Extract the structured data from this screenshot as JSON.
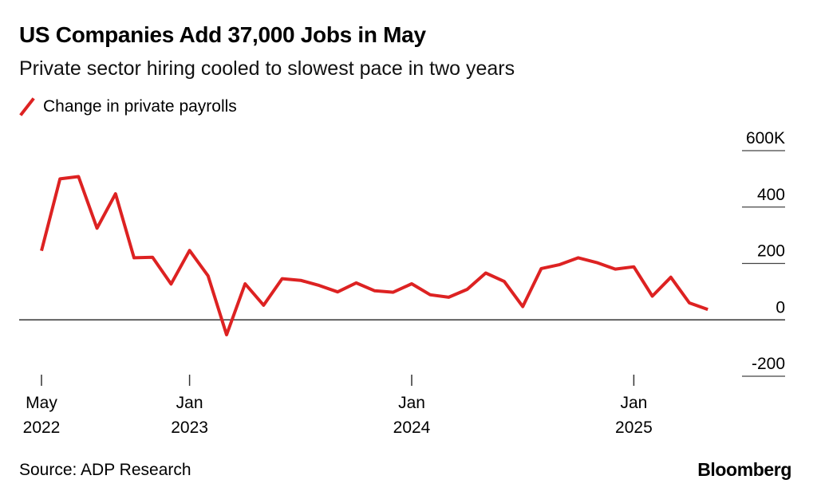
{
  "header": {
    "title": "US Companies Add 37,000 Jobs in May",
    "subtitle": "Private sector hiring cooled to slowest pace in two years"
  },
  "legend": {
    "label": "Change in private payrolls",
    "color": "#dd2222"
  },
  "footer": {
    "source": "Source: ADP Research",
    "brand": "Bloomberg"
  },
  "chart_data": {
    "type": "line",
    "title": "US Companies Add 37,000 Jobs in May",
    "subtitle": "Private sector hiring cooled to slowest pace in two years",
    "xlabel": "",
    "ylabel": "",
    "ylim": [
      -200,
      600
    ],
    "grid": true,
    "legend_position": "top-left",
    "y_ticks": [
      {
        "value": 600,
        "label": "600K"
      },
      {
        "value": 400,
        "label": "400"
      },
      {
        "value": 200,
        "label": "200"
      },
      {
        "value": 0,
        "label": "0"
      },
      {
        "value": -200,
        "label": "-200"
      }
    ],
    "x_ticks": [
      {
        "date": "2022-05",
        "line1": "May",
        "line2": "2022"
      },
      {
        "date": "2023-01",
        "line1": "Jan",
        "line2": "2023"
      },
      {
        "date": "2024-01",
        "line1": "Jan",
        "line2": "2024"
      },
      {
        "date": "2025-01",
        "line1": "Jan",
        "line2": "2025"
      }
    ],
    "series": [
      {
        "name": "Change in private payrolls",
        "color": "#dd2222",
        "x": [
          "2022-05",
          "2022-06",
          "2022-07",
          "2022-08",
          "2022-09",
          "2022-10",
          "2022-11",
          "2022-12",
          "2023-01",
          "2023-02",
          "2023-03",
          "2023-04",
          "2023-05",
          "2023-06",
          "2023-07",
          "2023-08",
          "2023-09",
          "2023-10",
          "2023-11",
          "2023-12",
          "2024-01",
          "2024-02",
          "2024-03",
          "2024-04",
          "2024-05",
          "2024-06",
          "2024-07",
          "2024-08",
          "2024-09",
          "2024-10",
          "2024-11",
          "2024-12",
          "2025-01",
          "2025-02",
          "2025-03",
          "2025-04",
          "2025-05"
        ],
        "values": [
          245,
          500,
          508,
          325,
          447,
          220,
          222,
          127,
          246,
          156,
          -53,
          128,
          52,
          146,
          140,
          122,
          99,
          131,
          103,
          98,
          128,
          89,
          80,
          108,
          166,
          136,
          47,
          182,
          196,
          220,
          203,
          180,
          188,
          84,
          151,
          60,
          37
        ]
      }
    ]
  }
}
